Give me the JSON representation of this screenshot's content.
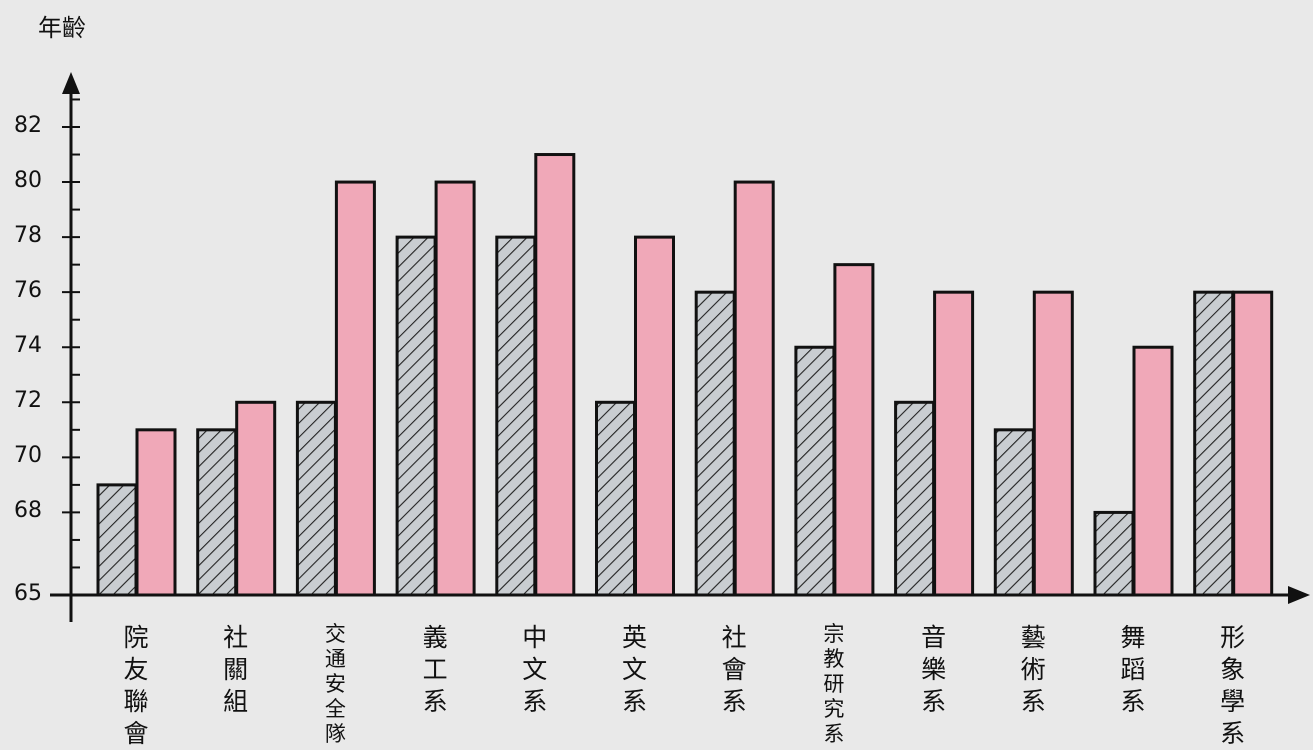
{
  "chart_data": {
    "type": "bar",
    "title": "",
    "ylabel": "年齡",
    "xlabel": "",
    "ylim": [
      65,
      85
    ],
    "yticks": [
      65,
      68,
      70,
      72,
      74,
      76,
      78,
      80,
      82
    ],
    "grid": false,
    "legend": "none",
    "categories": [
      "院友聯會",
      "社關組",
      "交通安全隊",
      "義工系",
      "中文系",
      "英文系",
      "社會系",
      "宗教研究系",
      "音樂系",
      "藝術系",
      "舞蹈系",
      "形象學系"
    ],
    "series": [
      {
        "pattern": "hatched",
        "color": "#c9cdd1",
        "values": [
          69,
          71,
          72,
          78,
          78,
          72,
          76,
          74,
          72,
          71,
          68,
          76
        ]
      },
      {
        "pattern": "solid",
        "color": "#f0a8b8",
        "values": [
          71,
          72,
          80,
          80,
          81,
          78,
          80,
          77,
          76,
          76,
          74,
          76
        ]
      }
    ]
  },
  "colors": {
    "axis": "#111111",
    "background": "#e9e9e9",
    "hatch": "#222222"
  }
}
